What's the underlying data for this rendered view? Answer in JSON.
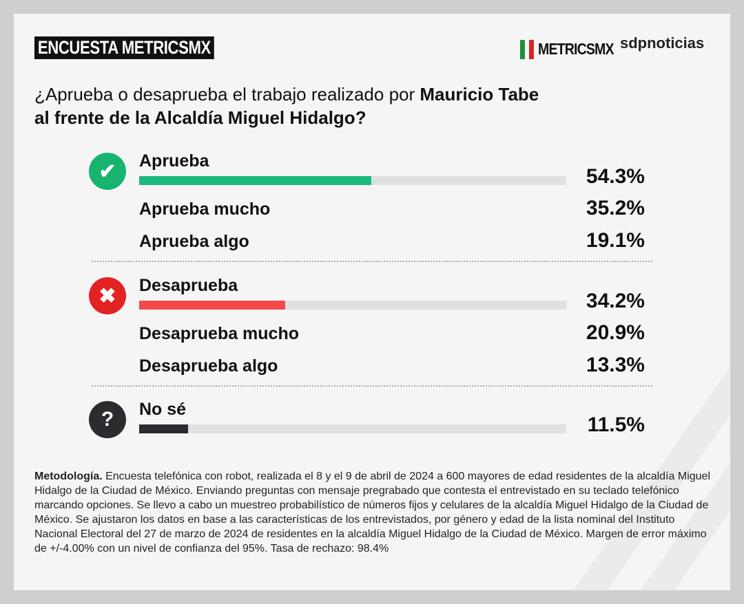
{
  "header": {
    "badge": "ENCUESTA METRICSMX",
    "logo_metrics": "METRICSMX",
    "logo_sdp": "sdpnoticias"
  },
  "question": {
    "part1": "¿Aprueba o desaprueba el trabajo realizado por ",
    "bold1": "Mauricio Tabe",
    "bold2": "al frente de la Alcaldía Miguel Hidalgo?"
  },
  "chart_data": {
    "type": "bar",
    "title": "¿Aprueba o desaprueba el trabajo realizado por Mauricio Tabe al frente de la Alcaldía Miguel Hidalgo?",
    "categories": [
      "Aprueba",
      "Desaprueba",
      "No sé"
    ],
    "values": [
      54.3,
      34.2,
      11.5
    ],
    "xlim": [
      0,
      100
    ],
    "colors": [
      "#1db87e",
      "#f24a4a",
      "#2e2b30"
    ],
    "groups": [
      {
        "label": "Aprueba",
        "value": 54.3,
        "value_label": "54.3%",
        "icon": "check-icon",
        "color": "#1db87e",
        "icon_color": "#17b46f",
        "sub": [
          {
            "label": "Aprueba mucho",
            "value": 35.2,
            "value_label": "35.2%"
          },
          {
            "label": "Aprueba algo",
            "value": 19.1,
            "value_label": "19.1%"
          }
        ]
      },
      {
        "label": "Desaprueba",
        "value": 34.2,
        "value_label": "34.2%",
        "icon": "x-icon",
        "color": "#f24a4a",
        "icon_color": "#e32222",
        "sub": [
          {
            "label": "Desaprueba mucho",
            "value": 20.9,
            "value_label": "20.9%"
          },
          {
            "label": "Desaprueba algo",
            "value": 13.3,
            "value_label": "13.3%"
          }
        ]
      },
      {
        "label": "No sé",
        "value": 11.5,
        "value_label": "11.5%",
        "icon": "question-icon",
        "color": "#2e2b30",
        "icon_color": "#2e2b30",
        "sub": []
      }
    ]
  },
  "methodology": {
    "title": "Metodología.",
    "text": " Encuesta telefónica con robot, realizada el 8 y el 9 de abril de 2024 a 600 mayores de edad residentes de la alcaldía Miguel Hidalgo de la Ciudad de México. Enviando preguntas con mensaje pregrabado que contesta el entrevistado en su teclado telefónico marcando opciones. Se llevo a cabo un muestreo probabilístico de números fijos y celulares de la alcaldía Miguel Hidalgo de la Ciudad de México. Se ajustaron los datos en base a las características de los entrevistados, por género y edad de la lista nominal del Instituto Nacional Electoral del 27 de marzo de 2024 de residentes en la alcaldía Miguel Hidalgo de la Ciudad de México. Margen de error máximo de +/-4.00% con un nivel de confianza del 95%. Tasa de rechazo: 98.4%"
  }
}
